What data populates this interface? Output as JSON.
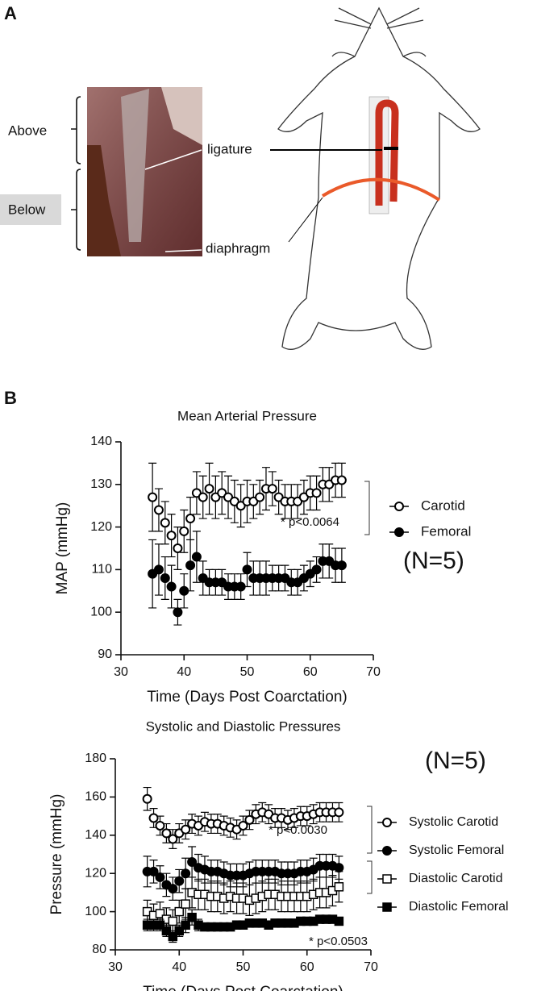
{
  "panel_a": {
    "label": "A",
    "above": "Above",
    "below": "Below",
    "ligature": "ligature",
    "diaphragm": "diaphragm"
  },
  "panel_b": {
    "label": "B"
  },
  "chart_data": [
    {
      "type": "scatter",
      "title": "Mean Arterial Pressure",
      "xlabel": "Time (Days Post Coarctation)",
      "ylabel": "MAP (mmHg)",
      "xlim": [
        30,
        70
      ],
      "xticks": [
        30,
        40,
        50,
        60,
        70
      ],
      "ylim": [
        90,
        140
      ],
      "yticks": [
        90,
        100,
        110,
        120,
        130,
        140
      ],
      "x": [
        35,
        36,
        37,
        38,
        39,
        40,
        41,
        42,
        43,
        44,
        45,
        46,
        47,
        48,
        49,
        50,
        51,
        52,
        53,
        54,
        55,
        56,
        57,
        58,
        59,
        60,
        61,
        62,
        63,
        64,
        65
      ],
      "series": [
        {
          "name": "Carotid",
          "color": "#000000",
          "marker": "circle",
          "filled": false,
          "values": [
            127,
            124,
            121,
            118,
            115,
            119,
            122,
            128,
            127,
            129,
            127,
            128,
            127,
            126,
            125,
            126,
            126,
            127,
            129,
            129,
            127,
            126,
            126,
            126,
            127,
            128,
            128,
            130,
            130,
            131,
            131
          ],
          "errors": [
            8,
            5,
            5,
            5,
            5,
            5,
            5,
            5,
            5,
            6,
            5,
            5,
            5,
            5,
            5,
            5,
            4,
            4,
            5,
            4,
            4,
            4,
            4,
            4,
            4,
            4,
            4,
            4,
            4,
            4,
            4
          ]
        },
        {
          "name": "Femoral",
          "color": "#000000",
          "marker": "circle",
          "filled": true,
          "values": [
            109,
            110,
            108,
            106,
            100,
            105,
            111,
            113,
            108,
            107,
            107,
            107,
            106,
            106,
            106,
            110,
            108,
            108,
            108,
            108,
            108,
            108,
            107,
            107,
            108,
            109,
            110,
            112,
            112,
            111,
            111
          ],
          "errors": [
            8,
            6,
            5,
            5,
            3,
            4,
            6,
            6,
            4,
            3,
            3,
            3,
            3,
            3,
            3,
            4,
            4,
            4,
            4,
            3,
            3,
            3,
            3,
            3,
            3,
            3,
            3,
            4,
            4,
            4,
            4
          ]
        }
      ],
      "annotations": [
        "* p<0.0064",
        "(N=5)"
      ]
    },
    {
      "type": "scatter",
      "title": "Systolic and Diastolic Pressures",
      "xlabel": "Time (Days Post Coarctation)",
      "ylabel": "Pressure (mmHg)",
      "xlim": [
        30,
        70
      ],
      "xticks": [
        30,
        40,
        50,
        60,
        70
      ],
      "ylim": [
        80,
        180
      ],
      "yticks": [
        80,
        100,
        120,
        140,
        160,
        180
      ],
      "x": [
        35,
        36,
        37,
        38,
        39,
        40,
        41,
        42,
        43,
        44,
        45,
        46,
        47,
        48,
        49,
        50,
        51,
        52,
        53,
        54,
        55,
        56,
        57,
        58,
        59,
        60,
        61,
        62,
        63,
        64,
        65
      ],
      "series": [
        {
          "name": "Systolic Carotid",
          "color": "#000000",
          "marker": "circle",
          "filled": false,
          "values": [
            159,
            149,
            145,
            141,
            138,
            141,
            143,
            146,
            145,
            147,
            146,
            146,
            145,
            144,
            143,
            145,
            148,
            151,
            152,
            151,
            149,
            149,
            148,
            149,
            150,
            150,
            151,
            152,
            152,
            152,
            152
          ],
          "errors": [
            6,
            5,
            5,
            5,
            5,
            5,
            5,
            5,
            5,
            5,
            5,
            5,
            5,
            5,
            5,
            5,
            5,
            5,
            5,
            5,
            5,
            5,
            5,
            5,
            5,
            5,
            5,
            5,
            5,
            5,
            5
          ]
        },
        {
          "name": "Systolic Femoral",
          "color": "#000000",
          "marker": "circle",
          "filled": true,
          "values": [
            121,
            121,
            118,
            114,
            112,
            116,
            120,
            126,
            123,
            122,
            121,
            121,
            120,
            119,
            119,
            119,
            120,
            121,
            121,
            121,
            121,
            120,
            120,
            120,
            121,
            121,
            122,
            124,
            124,
            124,
            123
          ],
          "errors": [
            8,
            6,
            6,
            6,
            6,
            6,
            8,
            8,
            7,
            7,
            6,
            6,
            6,
            6,
            6,
            6,
            6,
            6,
            6,
            6,
            6,
            6,
            6,
            6,
            6,
            6,
            6,
            6,
            6,
            6,
            6
          ]
        },
        {
          "name": "Diastolic Carotid",
          "color": "#000000",
          "marker": "square",
          "filled": false,
          "values": [
            100,
            98,
            99,
            96,
            95,
            100,
            104,
            110,
            109,
            109,
            108,
            108,
            107,
            108,
            107,
            107,
            106,
            107,
            108,
            109,
            109,
            108,
            108,
            108,
            108,
            108,
            109,
            110,
            110,
            111,
            113
          ],
          "errors": [
            6,
            6,
            6,
            6,
            6,
            6,
            8,
            8,
            8,
            8,
            8,
            8,
            8,
            8,
            8,
            8,
            8,
            8,
            8,
            8,
            8,
            8,
            8,
            8,
            8,
            8,
            8,
            8,
            8,
            8,
            8
          ]
        },
        {
          "name": "Diastolic Femoral",
          "color": "#000000",
          "marker": "square",
          "filled": true,
          "values": [
            93,
            93,
            93,
            90,
            87,
            90,
            93,
            97,
            93,
            92,
            92,
            92,
            92,
            92,
            93,
            93,
            94,
            94,
            94,
            93,
            94,
            94,
            94,
            94,
            95,
            95,
            95,
            96,
            96,
            96,
            95
          ],
          "errors": [
            3,
            3,
            3,
            3,
            3,
            3,
            4,
            4,
            3,
            2,
            2,
            2,
            2,
            2,
            2,
            2,
            2,
            2,
            2,
            2,
            2,
            2,
            2,
            2,
            2,
            2,
            2,
            2,
            2,
            2,
            2
          ]
        }
      ],
      "annotations": [
        "(N=5)",
        "* p<0.0030",
        "* p<0.0503"
      ]
    }
  ]
}
